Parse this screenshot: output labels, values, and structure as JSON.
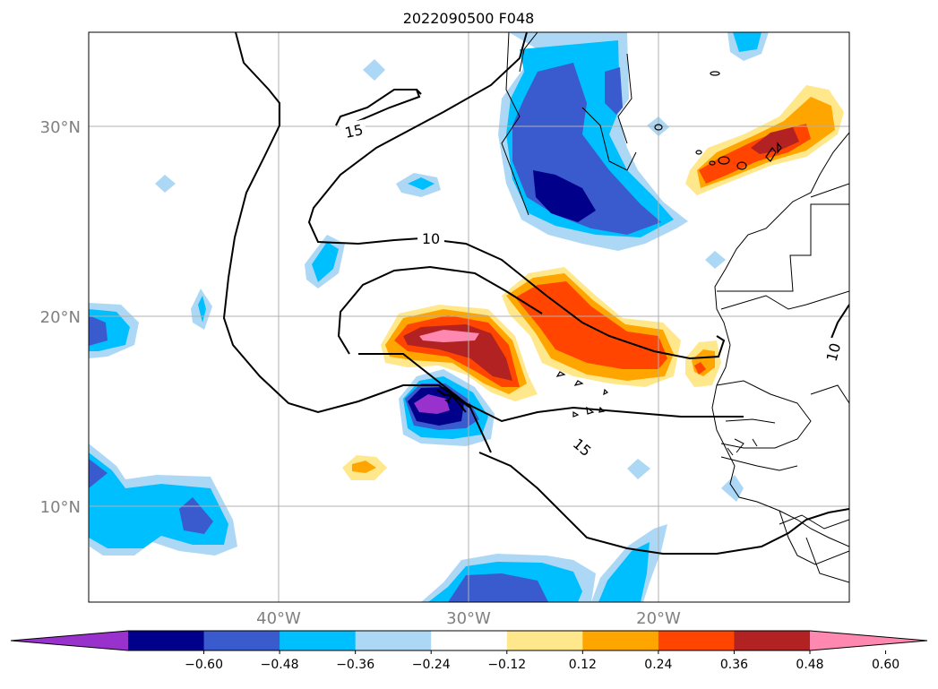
{
  "title": "2022090500 F048",
  "lat_labels": [
    "30°N",
    "20°N",
    "10°N"
  ],
  "lon_labels": [
    "40°W",
    "30°W",
    "20°W"
  ],
  "contour_labels": [
    "15",
    "10",
    "15",
    "10",
    "-1"
  ],
  "colorbar": {
    "ticks": [
      "−0.60",
      "−0.48",
      "−0.36",
      "−0.24",
      "−0.12",
      "0.12",
      "0.24",
      "0.36",
      "0.48",
      "0.60"
    ],
    "colors": [
      "#9932cc",
      "#00008b",
      "#3a5bcd",
      "#00bfff",
      "#add8f5",
      "#ffffff",
      "#ffe88c",
      "#ffa500",
      "#ff4500",
      "#b22222",
      "#ff88b0"
    ],
    "extend": "both"
  },
  "colors": {
    "grid": "#b0b0b0",
    "coast": "#000000",
    "contour": "#000000",
    "label": "#808080"
  }
}
